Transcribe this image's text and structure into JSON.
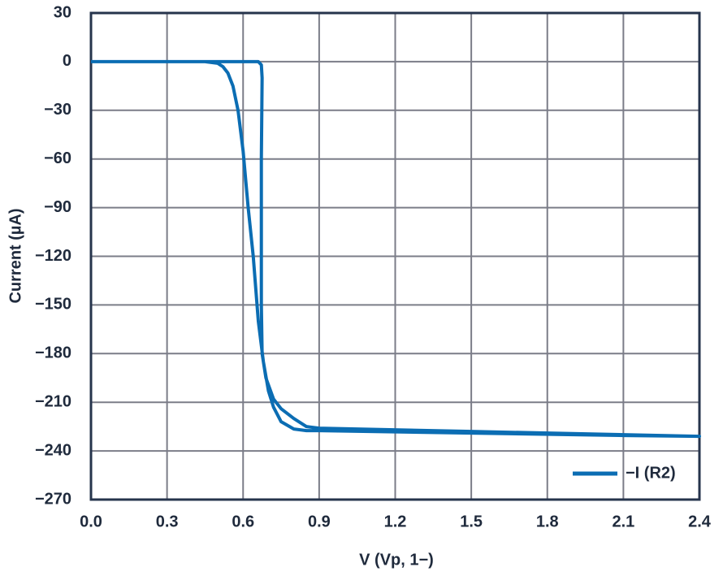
{
  "chart_data": {
    "type": "line",
    "xlabel": "V (Vp, 1−)",
    "ylabel": "Current (µA)",
    "xlim": [
      0,
      2.4
    ],
    "ylim": [
      -270,
      30
    ],
    "xticks": [
      {
        "value": 0,
        "label": "0.0"
      },
      0.3,
      0.6,
      0.9,
      1.2,
      1.5,
      1.8,
      2.1,
      2.4
    ],
    "yticks": [
      30,
      0,
      {
        "value": -30,
        "label": "−30"
      },
      {
        "value": -60,
        "label": "−60"
      },
      {
        "value": -90,
        "label": "−90"
      },
      {
        "value": -120,
        "label": "−120"
      },
      {
        "value": -150,
        "label": "−150"
      },
      {
        "value": -180,
        "label": "−180"
      },
      {
        "value": -210,
        "label": "−210"
      },
      {
        "value": -240,
        "label": "−240"
      },
      {
        "value": -270,
        "label": "−270"
      }
    ],
    "grid": true,
    "legend": "lower right",
    "series": [
      {
        "name": "−I (R2)",
        "color": "#0b6db3",
        "x": [
          0,
          0.3,
          0.6,
          0.66,
          0.672,
          0.675,
          0.672,
          0.672,
          0.675,
          0.69,
          0.72,
          0.75,
          0.8,
          0.85,
          0.9,
          1.5,
          2.1,
          2.4,
          2.1,
          1.5,
          0.9,
          0.85,
          0.8,
          0.75,
          0.72,
          0.7,
          0.68,
          0.66,
          0.64,
          0.62,
          0.6,
          0.58,
          0.56,
          0.54,
          0.52,
          0.5,
          0.45,
          0
        ],
        "values": [
          0,
          0,
          0,
          0,
          -2,
          -10,
          -60,
          -150,
          -180,
          -195,
          -208,
          -214,
          -220,
          -225,
          -226,
          -228,
          -230,
          -231,
          -230.5,
          -229,
          -227.5,
          -227.5,
          -226.5,
          -222,
          -213,
          -203,
          -185,
          -160,
          -120,
          -90,
          -55,
          -30,
          -15,
          -7,
          -3,
          -1,
          0,
          0
        ]
      }
    ]
  }
}
